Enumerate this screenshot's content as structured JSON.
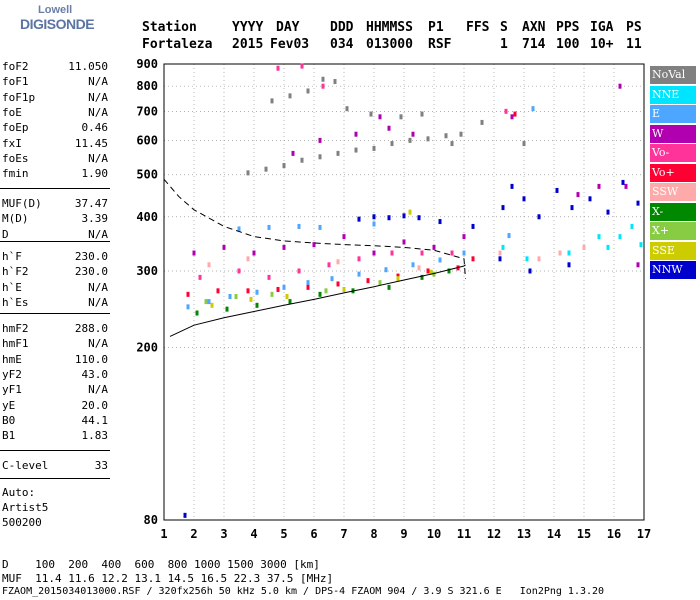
{
  "logo": {
    "line1": "Lowell",
    "line2": "DIGISONDE"
  },
  "header": {
    "labels": [
      "Station",
      "YYYY",
      "DAY",
      "DDD",
      "HHMMSS",
      "P1",
      "FFS",
      "S",
      "AXN",
      "PPS",
      "IGA",
      "PS"
    ],
    "values": [
      "Fortaleza",
      "2015",
      "Fev03",
      "034",
      "013000",
      "RSF",
      "",
      "1",
      "714",
      "100",
      "10+",
      "11"
    ]
  },
  "params_group1": [
    {
      "name": "foF2",
      "value": "11.050"
    },
    {
      "name": "foF1",
      "value": "N/A"
    },
    {
      "name": "foF1p",
      "value": "N/A"
    },
    {
      "name": "foE",
      "value": "N/A"
    },
    {
      "name": "foEp",
      "value": "0.46"
    },
    {
      "name": "fxI",
      "value": "11.45"
    },
    {
      "name": "foEs",
      "value": "N/A"
    },
    {
      "name": "fmin",
      "value": "1.90"
    }
  ],
  "params_group2": [
    {
      "name": "MUF(D)",
      "value": "37.47"
    },
    {
      "name": "M(D)",
      "value": "3.39"
    },
    {
      "name": "D",
      "value": "N/A"
    }
  ],
  "params_group3": [
    {
      "name": "h`F",
      "value": "230.0"
    },
    {
      "name": "h`F2",
      "value": "230.0"
    },
    {
      "name": "h`E",
      "value": "N/A"
    },
    {
      "name": "h`Es",
      "value": "N/A"
    }
  ],
  "params_group4": [
    {
      "name": "hmF2",
      "value": "288.0"
    },
    {
      "name": "hmF1",
      "value": "N/A"
    },
    {
      "name": "hmE",
      "value": "110.0"
    },
    {
      "name": "yF2",
      "value": "43.0"
    },
    {
      "name": "yF1",
      "value": "N/A"
    },
    {
      "name": "yE",
      "value": "20.0"
    },
    {
      "name": "B0",
      "value": "44.1"
    },
    {
      "name": "B1",
      "value": "1.83"
    }
  ],
  "params_group5": [
    {
      "name": "C-level",
      "value": "33"
    }
  ],
  "autoscale": {
    "line1": "Auto:",
    "line2": "Artist5",
    "line3": "500200"
  },
  "legend": [
    {
      "label": "NoVal",
      "color": "#808080"
    },
    {
      "label": "NNE",
      "color": "#00e5ff"
    },
    {
      "label": "E",
      "color": "#4da6ff"
    },
    {
      "label": "W",
      "color": "#b000b0"
    },
    {
      "label": "Vo-",
      "color": "#ff3399"
    },
    {
      "label": "Vo+",
      "color": "#ff0033"
    },
    {
      "label": "SSW",
      "color": "#ffaaaa"
    },
    {
      "label": "X-",
      "color": "#008800"
    },
    {
      "label": "X+",
      "color": "#88cc44"
    },
    {
      "label": "SSE",
      "color": "#cccc00"
    },
    {
      "label": "NNW",
      "color": "#0000cc"
    }
  ],
  "footer": {
    "d_line": "D    100  200  400  600  800 1000 1500 3000 [km]",
    "muf_line": "MUF  11.4 11.6 12.2 13.1 14.5 16.5 22.3 37.5 [MHz]",
    "file_line": "FZAOM_2015034013000.RSF / 320fx256h 50 kHz 5.0 km / DPS-4 FZAOM 904 / 3.9 S 321.6 E   Ion2Png 1.3.20"
  },
  "chart_data": {
    "type": "scatter",
    "title": "",
    "xlabel": "",
    "ylabel": "",
    "xlim": [
      1,
      17
    ],
    "ylim": [
      80,
      900
    ],
    "yscale": "log",
    "x_ticks": [
      1,
      2,
      3,
      4,
      5,
      6,
      7,
      8,
      9,
      10,
      11,
      12,
      13,
      14,
      15,
      16,
      17
    ],
    "y_ticks": [
      80,
      200,
      300,
      400,
      500,
      600,
      700,
      800,
      900
    ],
    "grid": true,
    "legend_placement": "right",
    "trace_curve": {
      "x": [
        1.2,
        2,
        3,
        4,
        5,
        6,
        7,
        8,
        9,
        10,
        11,
        11.05
      ],
      "y": [
        212,
        225,
        234,
        242,
        250,
        258,
        267,
        276,
        286,
        296,
        308,
        310
      ]
    },
    "profile_curve": {
      "x": [
        1.0,
        1.5,
        2,
        3,
        4,
        5,
        6,
        7,
        8,
        9,
        10,
        11,
        11.05
      ],
      "y": [
        488,
        445,
        415,
        380,
        360,
        352,
        348,
        345,
        343,
        340,
        335,
        320,
        288
      ]
    },
    "series": [
      {
        "name": "NNE",
        "color": "#00e5ff",
        "points": [
          [
            12.3,
            340
          ],
          [
            13.1,
            320
          ],
          [
            14.5,
            330
          ],
          [
            15.8,
            340
          ],
          [
            16.2,
            360
          ],
          [
            16.6,
            380
          ],
          [
            15.5,
            360
          ],
          [
            16.9,
            345
          ]
        ]
      },
      {
        "name": "E",
        "color": "#4da6ff",
        "points": [
          [
            1.8,
            248
          ],
          [
            2.5,
            255
          ],
          [
            3.2,
            262
          ],
          [
            4.1,
            268
          ],
          [
            5.0,
            275
          ],
          [
            5.8,
            282
          ],
          [
            6.6,
            288
          ],
          [
            7.5,
            295
          ],
          [
            8.4,
            302
          ],
          [
            9.3,
            310
          ],
          [
            10.2,
            318
          ],
          [
            11.0,
            330
          ],
          [
            3.5,
            375
          ],
          [
            4.5,
            378
          ],
          [
            5.5,
            380
          ],
          [
            6.2,
            378
          ],
          [
            8.0,
            385
          ],
          [
            12.5,
            362
          ],
          [
            13.3,
            710
          ]
        ]
      },
      {
        "name": "W",
        "color": "#b000b0",
        "points": [
          [
            2.0,
            330
          ],
          [
            3.0,
            340
          ],
          [
            4.0,
            330
          ],
          [
            5.0,
            340
          ],
          [
            6.0,
            345
          ],
          [
            7.0,
            360
          ],
          [
            8.0,
            330
          ],
          [
            9.0,
            350
          ],
          [
            10.0,
            340
          ],
          [
            11.0,
            360
          ],
          [
            14.8,
            450
          ],
          [
            15.5,
            470
          ],
          [
            16.4,
            470
          ],
          [
            16.8,
            310
          ],
          [
            8.5,
            640
          ],
          [
            9.3,
            620
          ],
          [
            5.3,
            560
          ],
          [
            6.2,
            600
          ],
          [
            7.4,
            620
          ],
          [
            8.2,
            680
          ],
          [
            12.6,
            680
          ],
          [
            16.2,
            800
          ]
        ]
      },
      {
        "name": "Vo-",
        "color": "#ff3399",
        "points": [
          [
            2.2,
            290
          ],
          [
            3.5,
            300
          ],
          [
            4.5,
            290
          ],
          [
            5.5,
            300
          ],
          [
            6.5,
            310
          ],
          [
            7.5,
            320
          ],
          [
            8.6,
            330
          ],
          [
            9.6,
            330
          ],
          [
            10.6,
            330
          ],
          [
            4.8,
            880
          ],
          [
            5.6,
            890
          ],
          [
            6.3,
            800
          ],
          [
            12.4,
            700
          ]
        ]
      },
      {
        "name": "Vo+",
        "color": "#ff0033",
        "points": [
          [
            1.8,
            265
          ],
          [
            2.8,
            270
          ],
          [
            3.8,
            270
          ],
          [
            4.8,
            272
          ],
          [
            5.8,
            275
          ],
          [
            6.8,
            280
          ],
          [
            7.8,
            285
          ],
          [
            8.8,
            292
          ],
          [
            9.8,
            300
          ],
          [
            10.8,
            305
          ],
          [
            11.3,
            320
          ],
          [
            12.7,
            690
          ]
        ]
      },
      {
        "name": "SSW",
        "color": "#ffaaaa",
        "points": [
          [
            2.5,
            310
          ],
          [
            3.8,
            320
          ],
          [
            6.8,
            315
          ],
          [
            9.5,
            305
          ],
          [
            12.2,
            330
          ],
          [
            13.5,
            320
          ],
          [
            14.2,
            330
          ],
          [
            15.0,
            340
          ]
        ]
      },
      {
        "name": "X-",
        "color": "#008800",
        "points": [
          [
            2.1,
            240
          ],
          [
            3.1,
            245
          ],
          [
            4.1,
            250
          ],
          [
            5.2,
            255
          ],
          [
            6.2,
            265
          ],
          [
            7.3,
            270
          ],
          [
            8.5,
            275
          ],
          [
            9.6,
            290
          ],
          [
            10.5,
            300
          ]
        ]
      },
      {
        "name": "X+",
        "color": "#88cc44",
        "points": [
          [
            2.4,
            255
          ],
          [
            3.4,
            262
          ],
          [
            4.6,
            265
          ],
          [
            6.4,
            270
          ],
          [
            8.2,
            282
          ],
          [
            10.0,
            295
          ]
        ]
      },
      {
        "name": "SSE",
        "color": "#cccc00",
        "points": [
          [
            2.6,
            250
          ],
          [
            3.9,
            258
          ],
          [
            5.1,
            262
          ],
          [
            7.0,
            272
          ],
          [
            8.8,
            288
          ],
          [
            9.9,
            298
          ],
          [
            9.2,
            410
          ]
        ]
      },
      {
        "name": "NNW",
        "color": "#0000cc",
        "points": [
          [
            1.7,
            82
          ],
          [
            7.5,
            395
          ],
          [
            8.0,
            400
          ],
          [
            8.5,
            398
          ],
          [
            9.0,
            402
          ],
          [
            9.5,
            398
          ],
          [
            10.2,
            390
          ],
          [
            11.3,
            380
          ],
          [
            12.3,
            420
          ],
          [
            12.6,
            470
          ],
          [
            13.0,
            440
          ],
          [
            13.5,
            400
          ],
          [
            14.1,
            460
          ],
          [
            14.6,
            420
          ],
          [
            15.2,
            440
          ],
          [
            15.8,
            410
          ],
          [
            16.3,
            480
          ],
          [
            16.8,
            430
          ],
          [
            12.2,
            320
          ],
          [
            13.2,
            300
          ],
          [
            14.5,
            310
          ]
        ]
      },
      {
        "name": "NoVal",
        "color": "#808080",
        "points": [
          [
            3.8,
            505
          ],
          [
            4.4,
            515
          ],
          [
            5.0,
            525
          ],
          [
            5.6,
            540
          ],
          [
            6.2,
            550
          ],
          [
            6.8,
            560
          ],
          [
            7.4,
            570
          ],
          [
            8.0,
            575
          ],
          [
            8.6,
            590
          ],
          [
            9.2,
            600
          ],
          [
            9.8,
            605
          ],
          [
            10.4,
            615
          ],
          [
            10.9,
            620
          ],
          [
            4.6,
            740
          ],
          [
            5.2,
            760
          ],
          [
            5.8,
            780
          ],
          [
            6.3,
            830
          ],
          [
            6.7,
            820
          ],
          [
            7.1,
            710
          ],
          [
            7.9,
            690
          ],
          [
            8.9,
            680
          ],
          [
            9.6,
            690
          ],
          [
            10.6,
            590
          ],
          [
            11.6,
            660
          ],
          [
            13.0,
            590
          ]
        ]
      }
    ]
  }
}
